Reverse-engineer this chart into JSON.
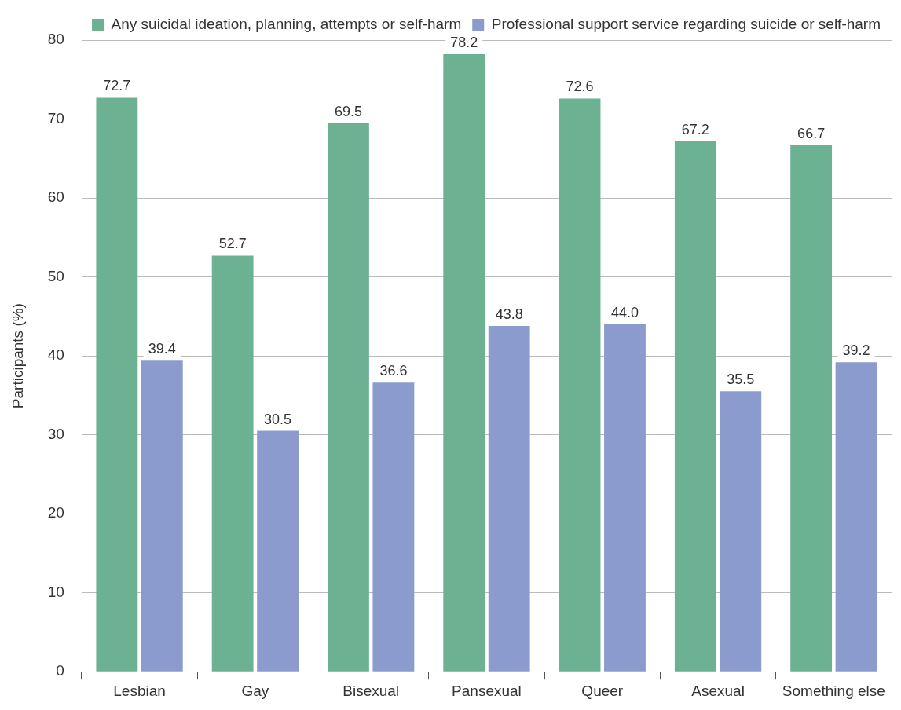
{
  "chart_data": {
    "type": "bar",
    "ylabel": "Participants (%)",
    "categories": [
      "Lesbian",
      "Gay",
      "Bisexual",
      "Pansexual",
      "Queer",
      "Asexual",
      "Something else"
    ],
    "series": [
      {
        "name": "Any suicidal ideation, planning, attempts or self-harm",
        "color": "#6db193",
        "values": [
          72.7,
          52.7,
          69.5,
          78.2,
          72.6,
          67.2,
          66.7
        ]
      },
      {
        "name": "Professional support service regarding suicide or self-harm",
        "color": "#8b9bcd",
        "values": [
          39.4,
          30.5,
          36.6,
          43.8,
          44.0,
          35.5,
          39.2
        ],
        "value_labels": [
          "39.4",
          "30.5",
          "36.6",
          "43.8",
          "44.0",
          "35.5",
          "39.2"
        ]
      }
    ],
    "ylim": [
      0,
      80
    ],
    "yticks": [
      0,
      10,
      20,
      30,
      40,
      50,
      60,
      70,
      80
    ],
    "grid": "y",
    "legend": "top right",
    "data_labels": true
  }
}
